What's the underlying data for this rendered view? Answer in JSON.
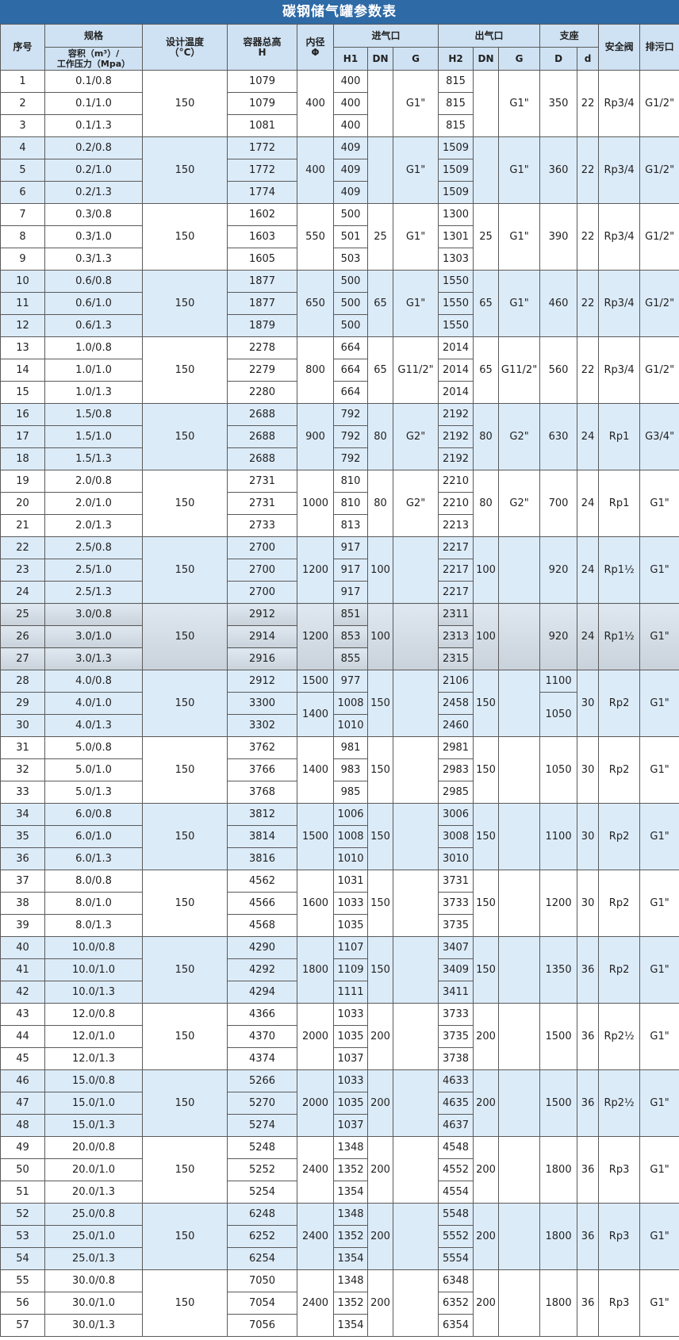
{
  "title": "碳钢储气罐参数表",
  "header": {
    "no": "序号",
    "spec": "规格",
    "spec_sub": [
      "容积（m³）/",
      "工作压力（Mpa）"
    ],
    "temp": [
      "设计温度",
      "（°C）"
    ],
    "height": [
      "容器总高",
      "H"
    ],
    "diameter": [
      "内径",
      "Φ"
    ],
    "inlet": "进气口",
    "inlet_cols": [
      "H1",
      "DN",
      "G"
    ],
    "outlet": "出气口",
    "outlet_cols": [
      "H2",
      "DN",
      "G"
    ],
    "support": "支座",
    "support_cols": [
      "D",
      "d"
    ],
    "valve": "安全阀",
    "drain": "排污口"
  },
  "groups": [
    {
      "temp": 150,
      "phi": 400,
      "g_in": "G1\"",
      "g_out": "G1\"",
      "D": 350,
      "d": 22,
      "valve": "Rp3/4",
      "drain": "G1/2\"",
      "rows": [
        {
          "no": 1,
          "spec": "0.1/0.8",
          "H": 1079,
          "H1": 400,
          "H2": 815
        },
        {
          "no": 2,
          "spec": "0.1/1.0",
          "H": 1079,
          "H1": 400,
          "H2": 815
        },
        {
          "no": 3,
          "spec": "0.1/1.3",
          "H": 1081,
          "H1": 400,
          "H2": 815
        }
      ]
    },
    {
      "temp": 150,
      "phi": 400,
      "g_in": "G1\"",
      "g_out": "G1\"",
      "D": 360,
      "d": 22,
      "valve": "Rp3/4",
      "drain": "G1/2\"",
      "rows": [
        {
          "no": 4,
          "spec": "0.2/0.8",
          "H": 1772,
          "H1": 409,
          "H2": 1509
        },
        {
          "no": 5,
          "spec": "0.2/1.0",
          "H": 1772,
          "H1": 409,
          "H2": 1509
        },
        {
          "no": 6,
          "spec": "0.2/1.3",
          "H": 1774,
          "H1": 409,
          "H2": 1509
        }
      ]
    },
    {
      "temp": 150,
      "phi": 550,
      "dn_in": 25,
      "g_in": "G1\"",
      "dn_out": 25,
      "g_out": "G1\"",
      "D": 390,
      "d": 22,
      "valve": "Rp3/4",
      "drain": "G1/2\"",
      "rows": [
        {
          "no": 7,
          "spec": "0.3/0.8",
          "H": 1602,
          "H1": 500,
          "H2": 1300
        },
        {
          "no": 8,
          "spec": "0.3/1.0",
          "H": 1603,
          "H1": 501,
          "H2": 1301
        },
        {
          "no": 9,
          "spec": "0.3/1.3",
          "H": 1605,
          "H1": 503,
          "H2": 1303
        }
      ]
    },
    {
      "temp": 150,
      "phi": 650,
      "dn_in": 65,
      "g_in": "G1\"",
      "dn_out": 65,
      "g_out": "G1\"",
      "D": 460,
      "d": 22,
      "valve": "Rp3/4",
      "drain": "G1/2\"",
      "rows": [
        {
          "no": 10,
          "spec": "0.6/0.8",
          "H": 1877,
          "H1": 500,
          "H2": 1550
        },
        {
          "no": 11,
          "spec": "0.6/1.0",
          "H": 1877,
          "H1": 500,
          "H2": 1550
        },
        {
          "no": 12,
          "spec": "0.6/1.3",
          "H": 1879,
          "H1": 500,
          "H2": 1550
        }
      ]
    },
    {
      "temp": 150,
      "phi": 800,
      "dn_in": 65,
      "g_in": "G11/2\"",
      "dn_out": 65,
      "g_out": "G11/2\"",
      "D": 560,
      "d": 22,
      "valve": "Rp3/4",
      "drain": "G1/2\"",
      "rows": [
        {
          "no": 13,
          "spec": "1.0/0.8",
          "H": 2278,
          "H1": 664,
          "H2": 2014
        },
        {
          "no": 14,
          "spec": "1.0/1.0",
          "H": 2279,
          "H1": 664,
          "H2": 2014
        },
        {
          "no": 15,
          "spec": "1.0/1.3",
          "H": 2280,
          "H1": 664,
          "H2": 2014
        }
      ]
    },
    {
      "temp": 150,
      "phi": 900,
      "dn_in": 80,
      "g_in": "G2\"",
      "dn_out": 80,
      "g_out": "G2\"",
      "D": 630,
      "d": 24,
      "valve": "Rp1",
      "drain": "G3/4\"",
      "rows": [
        {
          "no": 16,
          "spec": "1.5/0.8",
          "H": 2688,
          "H1": 792,
          "H2": 2192
        },
        {
          "no": 17,
          "spec": "1.5/1.0",
          "H": 2688,
          "H1": 792,
          "H2": 2192
        },
        {
          "no": 18,
          "spec": "1.5/1.3",
          "H": 2688,
          "H1": 792,
          "H2": 2192
        }
      ]
    },
    {
      "temp": 150,
      "phi": 1000,
      "dn_in": 80,
      "g_in": "G2\"",
      "dn_out": 80,
      "g_out": "G2\"",
      "D": 700,
      "d": 24,
      "valve": "Rp1",
      "drain": "G1\"",
      "rows": [
        {
          "no": 19,
          "spec": "2.0/0.8",
          "H": 2731,
          "H1": 810,
          "H2": 2210
        },
        {
          "no": 20,
          "spec": "2.0/1.0",
          "H": 2731,
          "H1": 810,
          "H2": 2210
        },
        {
          "no": 21,
          "spec": "2.0/1.3",
          "H": 2733,
          "H1": 813,
          "H2": 2213
        }
      ]
    },
    {
      "temp": 150,
      "phi": 1200,
      "dn_in": 100,
      "dn_out": 100,
      "D": 920,
      "d": 24,
      "valve": "Rp1½",
      "drain": "G1\"",
      "rows": [
        {
          "no": 22,
          "spec": "2.5/0.8",
          "H": 2700,
          "H1": 917,
          "H2": 2217
        },
        {
          "no": 23,
          "spec": "2.5/1.0",
          "H": 2700,
          "H1": 917,
          "H2": 2217
        },
        {
          "no": 24,
          "spec": "2.5/1.3",
          "H": 2700,
          "H1": 917,
          "H2": 2217
        }
      ]
    },
    {
      "temp": 150,
      "phi": 1200,
      "dn_in": 100,
      "dn_out": 100,
      "D": 920,
      "d": 24,
      "valve": "Rp1½",
      "drain": "G1\"",
      "rows": [
        {
          "no": 25,
          "spec": "3.0/0.8",
          "H": 2912,
          "H1": 851,
          "H2": 2311
        },
        {
          "no": 26,
          "spec": "3.0/1.0",
          "H": 2914,
          "H1": 853,
          "H2": 2313
        },
        {
          "no": 27,
          "spec": "3.0/1.3",
          "H": 2916,
          "H1": 855,
          "H2": 2315
        }
      ]
    },
    {
      "temp": 150,
      "phi": [
        1500,
        1400
      ],
      "dn_in": 150,
      "dn_out": 150,
      "D": [
        1100,
        1050
      ],
      "d": 30,
      "valve": "Rp2",
      "drain": "G1\"",
      "rows": [
        {
          "no": 28,
          "spec": "4.0/0.8",
          "H": 2912,
          "H1": 977,
          "H2": 2106
        },
        {
          "no": 29,
          "spec": "4.0/1.0",
          "H": 3300,
          "H1": 1008,
          "H2": 2458
        },
        {
          "no": 30,
          "spec": "4.0/1.3",
          "H": 3302,
          "H1": 1010,
          "H2": 2460
        }
      ]
    },
    {
      "temp": 150,
      "phi": 1400,
      "dn_in": 150,
      "dn_out": 150,
      "D": 1050,
      "d": 30,
      "valve": "Rp2",
      "drain": "G1\"",
      "rows": [
        {
          "no": 31,
          "spec": "5.0/0.8",
          "H": 3762,
          "H1": 981,
          "H2": 2981
        },
        {
          "no": 32,
          "spec": "5.0/1.0",
          "H": 3766,
          "H1": 983,
          "H2": 2983
        },
        {
          "no": 33,
          "spec": "5.0/1.3",
          "H": 3768,
          "H1": 985,
          "H2": 2985
        }
      ]
    },
    {
      "temp": 150,
      "phi": 1500,
      "dn_in": 150,
      "dn_out": 150,
      "D": 1100,
      "d": 30,
      "valve": "Rp2",
      "drain": "G1\"",
      "rows": [
        {
          "no": 34,
          "spec": "6.0/0.8",
          "H": 3812,
          "H1": 1006,
          "H2": 3006
        },
        {
          "no": 35,
          "spec": "6.0/1.0",
          "H": 3814,
          "H1": 1008,
          "H2": 3008
        },
        {
          "no": 36,
          "spec": "6.0/1.3",
          "H": 3816,
          "H1": 1010,
          "H2": 3010
        }
      ]
    },
    {
      "temp": 150,
      "phi": 1600,
      "dn_in": 150,
      "dn_out": 150,
      "D": 1200,
      "d": 30,
      "valve": "Rp2",
      "drain": "G1\"",
      "rows": [
        {
          "no": 37,
          "spec": "8.0/0.8",
          "H": 4562,
          "H1": 1031,
          "H2": 3731
        },
        {
          "no": 38,
          "spec": "8.0/1.0",
          "H": 4566,
          "H1": 1033,
          "H2": 3733
        },
        {
          "no": 39,
          "spec": "8.0/1.3",
          "H": 4568,
          "H1": 1035,
          "H2": 3735
        }
      ]
    },
    {
      "temp": 150,
      "phi": 1800,
      "dn_in": 150,
      "dn_out": 150,
      "D": 1350,
      "d": 36,
      "valve": "Rp2",
      "drain": "G1\"",
      "rows": [
        {
          "no": 40,
          "spec": "10.0/0.8",
          "H": 4290,
          "H1": 1107,
          "H2": 3407
        },
        {
          "no": 41,
          "spec": "10.0/1.0",
          "H": 4292,
          "H1": 1109,
          "H2": 3409
        },
        {
          "no": 42,
          "spec": "10.0/1.3",
          "H": 4294,
          "H1": 1111,
          "H2": 3411
        }
      ]
    },
    {
      "temp": 150,
      "phi": 2000,
      "dn_in": 200,
      "dn_out": 200,
      "D": 1500,
      "d": 36,
      "valve": "Rp2½",
      "drain": "G1\"",
      "rows": [
        {
          "no": 43,
          "spec": "12.0/0.8",
          "H": 4366,
          "H1": 1033,
          "H2": 3733
        },
        {
          "no": 44,
          "spec": "12.0/1.0",
          "H": 4370,
          "H1": 1035,
          "H2": 3735
        },
        {
          "no": 45,
          "spec": "12.0/1.3",
          "H": 4374,
          "H1": 1037,
          "H2": 3738
        }
      ]
    },
    {
      "temp": 150,
      "phi": 2000,
      "dn_in": 200,
      "dn_out": 200,
      "D": 1500,
      "d": 36,
      "valve": "Rp2½",
      "drain": "G1\"",
      "rows": [
        {
          "no": 46,
          "spec": "15.0/0.8",
          "H": 5266,
          "H1": 1033,
          "H2": 4633
        },
        {
          "no": 47,
          "spec": "15.0/1.0",
          "H": 5270,
          "H1": 1035,
          "H2": 4635
        },
        {
          "no": 48,
          "spec": "15.0/1.3",
          "H": 5274,
          "H1": 1037,
          "H2": 4637
        }
      ]
    },
    {
      "temp": 150,
      "phi": 2400,
      "dn_in": 200,
      "dn_out": 200,
      "D": 1800,
      "d": 36,
      "valve": "Rp3",
      "drain": "G1\"",
      "rows": [
        {
          "no": 49,
          "spec": "20.0/0.8",
          "H": 5248,
          "H1": 1348,
          "H2": 4548
        },
        {
          "no": 50,
          "spec": "20.0/1.0",
          "H": 5252,
          "H1": 1352,
          "H2": 4552
        },
        {
          "no": 51,
          "spec": "20.0/1.3",
          "H": 5254,
          "H1": 1354,
          "H2": 4554
        }
      ]
    },
    {
      "temp": 150,
      "phi": 2400,
      "dn_in": 200,
      "dn_out": 200,
      "D": 1800,
      "d": 36,
      "valve": "Rp3",
      "drain": "G1\"",
      "rows": [
        {
          "no": 52,
          "spec": "25.0/0.8",
          "H": 6248,
          "H1": 1348,
          "H2": 5548
        },
        {
          "no": 53,
          "spec": "25.0/1.0",
          "H": 6252,
          "H1": 1352,
          "H2": 5552
        },
        {
          "no": 54,
          "spec": "25.0/1.3",
          "H": 6254,
          "H1": 1354,
          "H2": 5554
        }
      ]
    },
    {
      "temp": 150,
      "phi": 2400,
      "dn_in": 200,
      "dn_out": 200,
      "D": 1800,
      "d": 36,
      "valve": "Rp3",
      "drain": "G1\"",
      "rows": [
        {
          "no": 55,
          "spec": "30.0/0.8",
          "H": 7050,
          "H1": 1348,
          "H2": 6348
        },
        {
          "no": 56,
          "spec": "30.0/1.0",
          "H": 7054,
          "H1": 1352,
          "H2": 6352
        },
        {
          "no": 57,
          "spec": "30.0/1.3",
          "H": 7056,
          "H1": 1354,
          "H2": 6354
        }
      ]
    }
  ]
}
